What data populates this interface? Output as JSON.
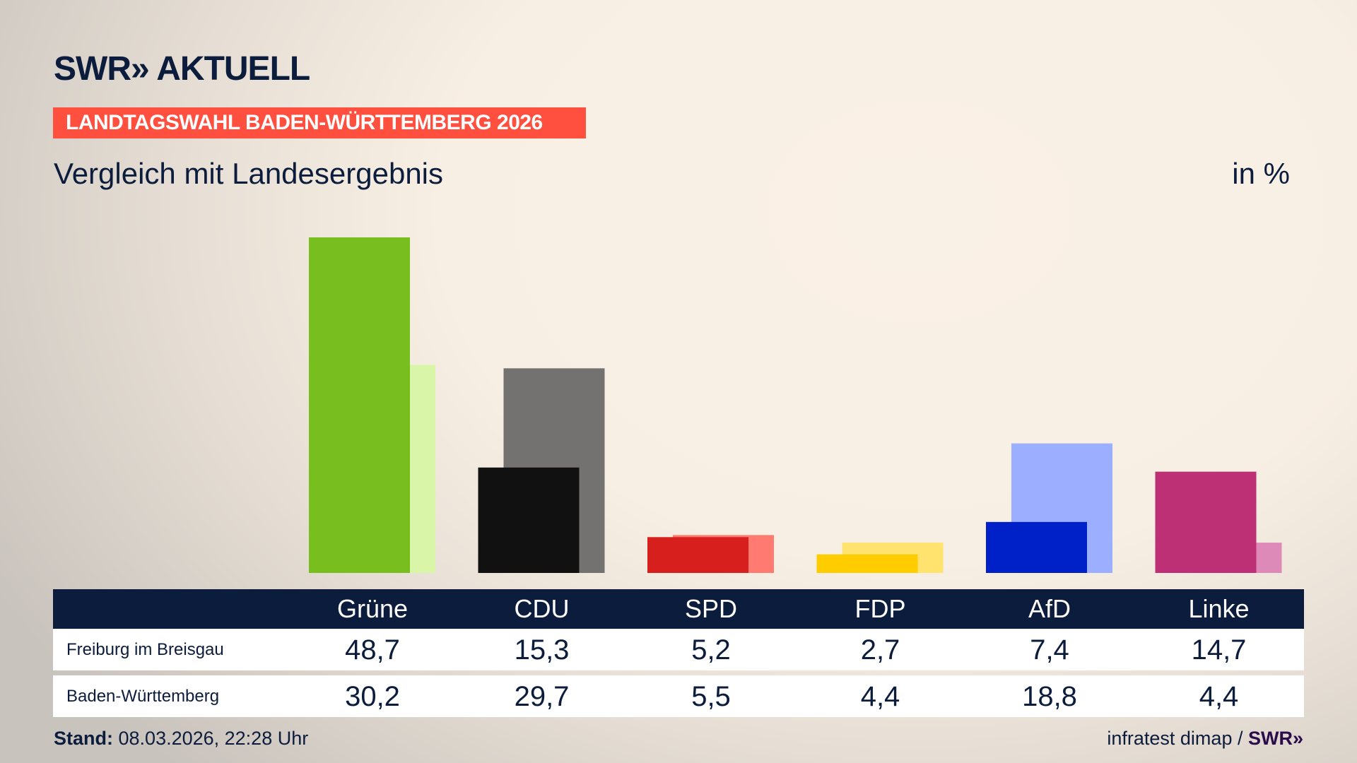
{
  "header": {
    "logo": "SWR» AKTUELL",
    "banner": "LANDTAGSWAHL BADEN-WÜRTTEMBERG 2026",
    "subtitle": "Vergleich mit Landesergebnis",
    "unit": "in %"
  },
  "footer": {
    "stand_label": "Stand:",
    "stand_value": "08.03.2026, 22:28 Uhr",
    "source": "infratest dimap /",
    "source_logo": "SWR»"
  },
  "chart_data": {
    "type": "bar",
    "categories": [
      "Grüne",
      "CDU",
      "SPD",
      "FDP",
      "AfD",
      "Linke"
    ],
    "series": [
      {
        "name": "Freiburg im Breisgau",
        "values": [
          48.7,
          15.3,
          5.2,
          2.7,
          7.4,
          14.7
        ],
        "labels": [
          "48,7",
          "15,3",
          "5,2",
          "2,7",
          "7,4",
          "14,7"
        ],
        "colors": [
          "#78be1e",
          "#111111",
          "#d71f1d",
          "#ffcc00",
          "#0020c8",
          "#be3075"
        ]
      },
      {
        "name": "Baden-Württemberg",
        "values": [
          30.2,
          29.7,
          5.5,
          4.4,
          18.8,
          4.4
        ],
        "labels": [
          "30,2",
          "29,7",
          "5,5",
          "4,4",
          "18,8",
          "4,4"
        ],
        "colors": [
          "#d8f5a8",
          "#737270",
          "#ff7a70",
          "#ffe36e",
          "#9caeff",
          "#de8ab8"
        ]
      }
    ],
    "ylim": [
      0,
      48.7
    ]
  }
}
